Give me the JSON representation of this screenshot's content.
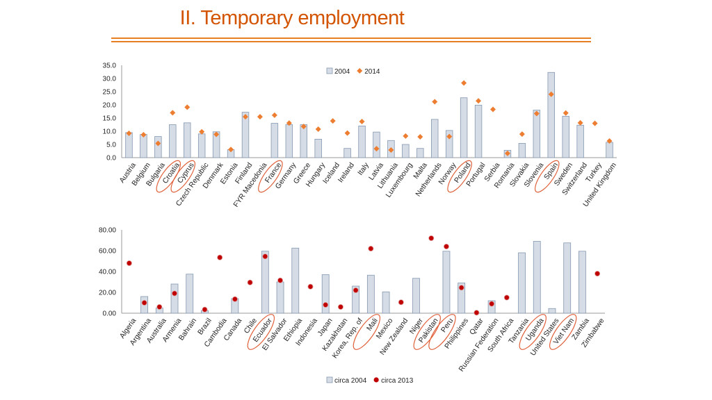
{
  "slide_title": "II. Temporary employment",
  "chart_data": [
    {
      "type": "bar",
      "title": "",
      "ylim": [
        0,
        35
      ],
      "yticks": [
        "35.0",
        "30.0",
        "25.0",
        "20.0",
        "15.0",
        "10.0",
        "5.0",
        "0.0"
      ],
      "ytick_values": [
        35,
        30,
        25,
        20,
        15,
        10,
        5,
        0
      ],
      "legend": [
        "2004",
        "2014"
      ],
      "legend_placement": "top",
      "bar_series": "2004",
      "marker_series": "2014",
      "categories": [
        "Austria",
        "Belgium",
        "Bulgaria",
        "Croatia",
        "Cyprus",
        "Czech Republic",
        "Denmark",
        "Estonia",
        "Finland",
        "FYR Macedonia",
        "France",
        "Germany",
        "Greece",
        "Hungary",
        "Iceland",
        "Ireland",
        "Italy",
        "Latvia",
        "Lithuania",
        "Luxembourg",
        "Malta",
        "Netherlands",
        "Norway",
        "Poland",
        "Portugal",
        "Serbia",
        "Romania",
        "Slovakia",
        "Slovenia",
        "Spain",
        "Sweden",
        "Switzerland",
        "Turkey",
        "United Kingdom"
      ],
      "bars": [
        9.5,
        8.8,
        8.0,
        12.5,
        13.2,
        9.0,
        9.8,
        3.0,
        17.2,
        null,
        13.0,
        12.5,
        12.5,
        7.0,
        null,
        3.5,
        12.0,
        9.7,
        6.5,
        5.0,
        3.5,
        14.5,
        10.3,
        22.7,
        19.9,
        null,
        2.8,
        5.4,
        18.0,
        32.3,
        15.7,
        12.3,
        null,
        5.8
      ],
      "markers": [
        9.2,
        8.7,
        5.4,
        17.0,
        19.1,
        9.8,
        8.8,
        3.1,
        15.5,
        15.5,
        16.1,
        13.1,
        11.8,
        10.8,
        13.9,
        9.3,
        13.7,
        3.4,
        2.9,
        8.2,
        7.9,
        21.2,
        8.0,
        28.3,
        21.5,
        18.3,
        1.6,
        8.9,
        16.7,
        24.0,
        16.9,
        13.2,
        13.0,
        6.3
      ],
      "circled": [
        "Croatia",
        "Cyprus",
        "France",
        "Poland",
        "Spain"
      ]
    },
    {
      "type": "bar",
      "title": "",
      "ylim": [
        0,
        80
      ],
      "yticks": [
        "80.00",
        "60.00",
        "40.00",
        "20.00",
        "0.00"
      ],
      "ytick_values": [
        80,
        60,
        40,
        20,
        0
      ],
      "legend": [
        "circa 2004",
        "circa 2013"
      ],
      "legend_placement": "bottom",
      "bar_series": "circa 2004",
      "marker_series": "circa 2013",
      "categories": [
        "Algeria",
        "Argentina",
        "Australia",
        "Armenia",
        "Bahrain",
        "Brazil",
        "Cambodia",
        "Canada",
        "Chile",
        "Ecuador",
        "El Salvador",
        "Ethiopia",
        "Indonesia",
        "Japan",
        "Kazakhstan",
        "Korea, Rep. of",
        "Mali",
        "Mexico",
        "New Zealand",
        "Niger",
        "Pakistan",
        "Peru",
        "Philippines",
        "Qatar",
        "Russian Federation",
        "South Africa",
        "Tanzania",
        "Uganda",
        "United States",
        "Viet Nam",
        "Zambia",
        "Zimbabwe"
      ],
      "bars": [
        null,
        16.0,
        5.0,
        28.0,
        37.5,
        2.5,
        null,
        14.0,
        null,
        59.5,
        30.0,
        62.5,
        null,
        37.0,
        null,
        26.0,
        36.5,
        20.5,
        null,
        33.5,
        null,
        59.5,
        29.0,
        null,
        12.0,
        null,
        58.0,
        69.0,
        4.5,
        67.5,
        59.5,
        null
      ],
      "markers": [
        48.0,
        10.0,
        6.0,
        19.0,
        null,
        3.5,
        53.5,
        13.5,
        29.5,
        54.5,
        31.5,
        null,
        25.5,
        8.0,
        6.0,
        22.0,
        62.0,
        null,
        10.5,
        null,
        72.0,
        64.0,
        24.5,
        0.5,
        9.0,
        15.0,
        null,
        null,
        null,
        null,
        null,
        38.0
      ],
      "circled": [
        "Ecuador",
        "Mali",
        "Pakistan",
        "Peru",
        "Uganda",
        "Viet Nam"
      ]
    }
  ]
}
